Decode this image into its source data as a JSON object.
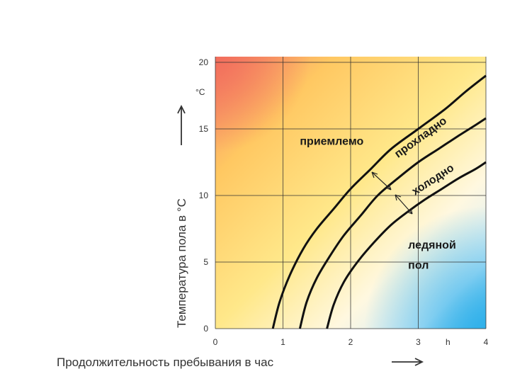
{
  "chart_data": {
    "type": "line",
    "xlabel": "Продолжительность пребывания в час",
    "ylabel": "Температура пола в °С",
    "y_unit_label": "°С",
    "x_unit_label": "h",
    "xlim": [
      0,
      4
    ],
    "ylim": [
      0,
      20
    ],
    "x_ticks": [
      0,
      1,
      2,
      3,
      4
    ],
    "y_ticks": [
      0,
      5,
      10,
      15,
      20
    ],
    "grid": true,
    "background": "gradient: warm red/orange top-left, yellow middle, light blue bottom-right",
    "colors": {
      "warm": "#f59a6a",
      "yellow": "#ffe27a",
      "light": "#fff6cc",
      "cool": "#5fc1ee",
      "curve": "#111111"
    },
    "series": [
      {
        "x": [
          0.85,
          0.95,
          1.1,
          1.3,
          1.5,
          1.75,
          2.0,
          2.3,
          2.6,
          3.0,
          3.4,
          3.7,
          4.0
        ],
        "y": [
          0,
          2.0,
          4.0,
          6.0,
          7.5,
          9.0,
          10.5,
          12.0,
          13.5,
          15.0,
          16.5,
          17.8,
          19.0
        ]
      },
      {
        "x": [
          1.25,
          1.35,
          1.5,
          1.7,
          1.9,
          2.15,
          2.4,
          2.7,
          3.0,
          3.3,
          3.6,
          3.85,
          4.0
        ],
        "y": [
          0,
          2.0,
          3.8,
          5.5,
          7.0,
          8.5,
          10.0,
          11.3,
          12.5,
          13.5,
          14.5,
          15.3,
          15.8
        ]
      },
      {
        "x": [
          1.65,
          1.75,
          1.9,
          2.1,
          2.35,
          2.6,
          2.85,
          3.1,
          3.35,
          3.6,
          3.85,
          4.0
        ],
        "y": [
          0,
          1.8,
          3.5,
          5.0,
          6.5,
          7.8,
          8.8,
          9.7,
          10.5,
          11.3,
          12.0,
          12.5
        ]
      }
    ],
    "annotations": [
      {
        "text": "приемлемо",
        "x": 1.25,
        "y": 13.8
      },
      {
        "text": "прохладно",
        "x": 2.7,
        "y": 12.8,
        "rotate": -36
      },
      {
        "text": "холодно",
        "x": 2.95,
        "y": 10.0,
        "rotate": -33
      },
      {
        "text": "ледяной",
        "x": 2.85,
        "y": 6.0
      },
      {
        "text": "пол",
        "x": 2.85,
        "y": 4.5
      }
    ]
  }
}
